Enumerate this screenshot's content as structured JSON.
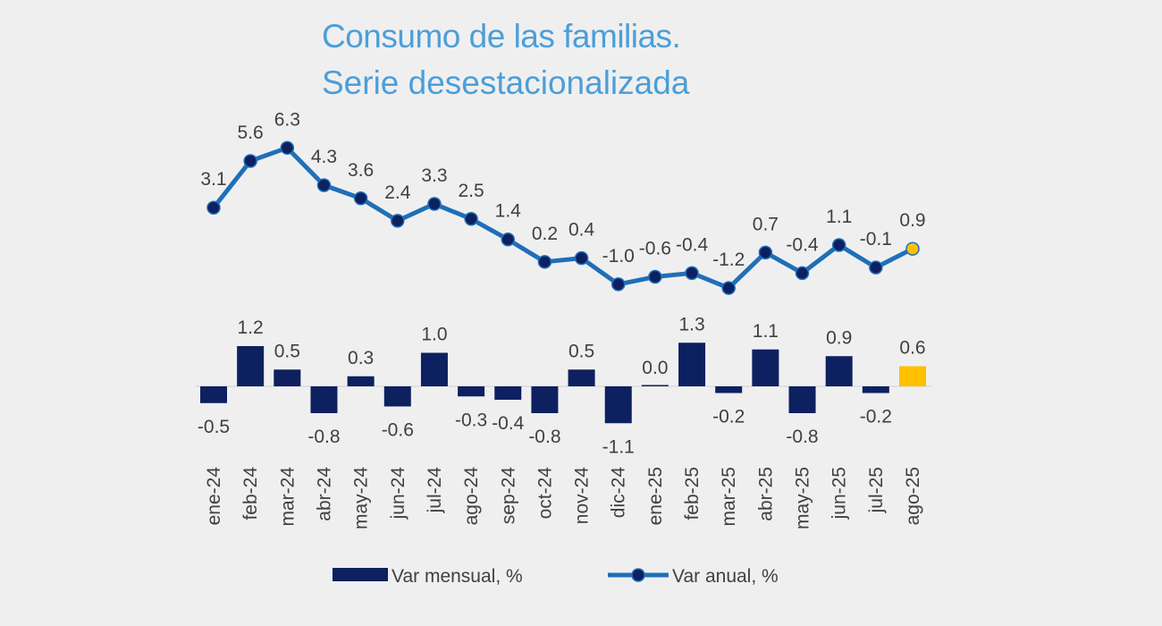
{
  "title": "Consumo de las familias.",
  "subtitle": "Serie desestacionalizada",
  "chart_data": {
    "type": "bar+line",
    "title": "Consumo de las familias.",
    "subtitle": "Serie desestacionalizada",
    "categories": [
      "ene-24",
      "feb-24",
      "mar-24",
      "abr-24",
      "may-24",
      "jun-24",
      "jul-24",
      "ago-24",
      "sep-24",
      "oct-24",
      "nov-24",
      "dic-24",
      "ene-25",
      "feb-25",
      "mar-25",
      "abr-25",
      "may-25",
      "jun-25",
      "jul-25",
      "ago-25"
    ],
    "series": [
      {
        "name": "Var mensual, %",
        "type": "bar",
        "color": "#0d2060",
        "highlight_color": "#ffc000",
        "highlight_last": true,
        "values": [
          -0.5,
          1.2,
          0.5,
          -0.8,
          0.3,
          -0.6,
          1.0,
          -0.3,
          -0.4,
          -0.8,
          0.5,
          -1.1,
          0.0,
          1.3,
          -0.2,
          1.1,
          -0.8,
          0.9,
          -0.2,
          0.6
        ]
      },
      {
        "name": "Var anual, %",
        "type": "line",
        "color": "#1f6fb8",
        "marker_color": "#0d2060",
        "highlight_color": "#ffc000",
        "highlight_last": true,
        "values": [
          3.1,
          5.6,
          6.3,
          4.3,
          3.6,
          2.4,
          3.3,
          2.5,
          1.4,
          0.2,
          0.4,
          -1.0,
          -0.6,
          -0.4,
          -1.2,
          0.7,
          -0.4,
          1.1,
          -0.1,
          0.9
        ]
      }
    ],
    "data_labels": true,
    "grid": false,
    "legend_position": "bottom"
  }
}
